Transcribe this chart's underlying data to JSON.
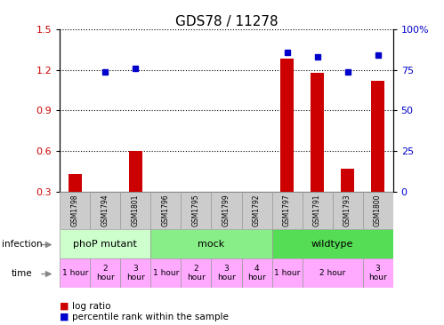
{
  "title": "GDS78 / 11278",
  "samples": [
    "GSM1798",
    "GSM1794",
    "GSM1801",
    "GSM1796",
    "GSM1795",
    "GSM1799",
    "GSM1792",
    "GSM1797",
    "GSM1791",
    "GSM1793",
    "GSM1800"
  ],
  "log_ratio": [
    0.43,
    null,
    0.6,
    null,
    null,
    null,
    null,
    1.28,
    1.18,
    0.47,
    1.12
  ],
  "percentile_rank_pct": [
    null,
    74,
    76,
    null,
    null,
    null,
    null,
    86,
    83,
    74,
    84
  ],
  "ylim_left": [
    0.3,
    1.5
  ],
  "ylim_right": [
    0,
    100
  ],
  "yticks_left": [
    0.3,
    0.6,
    0.9,
    1.2,
    1.5
  ],
  "yticks_right": [
    0,
    25,
    50,
    75,
    100
  ],
  "infection_groups": [
    {
      "label": "phoP mutant",
      "start": 0,
      "end": 3,
      "color": "#ccffcc"
    },
    {
      "label": "mock",
      "start": 3,
      "end": 7,
      "color": "#88ee88"
    },
    {
      "label": "wildtype",
      "start": 7,
      "end": 11,
      "color": "#55dd55"
    }
  ],
  "time_boxes": [
    {
      "start": 0,
      "end": 1,
      "label": "1 hour"
    },
    {
      "start": 1,
      "end": 2,
      "label": "2\nhour"
    },
    {
      "start": 2,
      "end": 3,
      "label": "3\nhour"
    },
    {
      "start": 3,
      "end": 4,
      "label": "1 hour"
    },
    {
      "start": 4,
      "end": 5,
      "label": "2\nhour"
    },
    {
      "start": 5,
      "end": 6,
      "label": "3\nhour"
    },
    {
      "start": 6,
      "end": 7,
      "label": "4\nhour"
    },
    {
      "start": 7,
      "end": 8,
      "label": "1 hour"
    },
    {
      "start": 8,
      "end": 10,
      "label": "2 hour"
    },
    {
      "start": 10,
      "end": 11,
      "label": "3\nhour"
    }
  ],
  "time_color": "#ffaaff",
  "bar_color": "#cc0000",
  "dot_color": "#0000cc",
  "sample_box_color": "#cccccc",
  "sample_box_edge": "#999999"
}
